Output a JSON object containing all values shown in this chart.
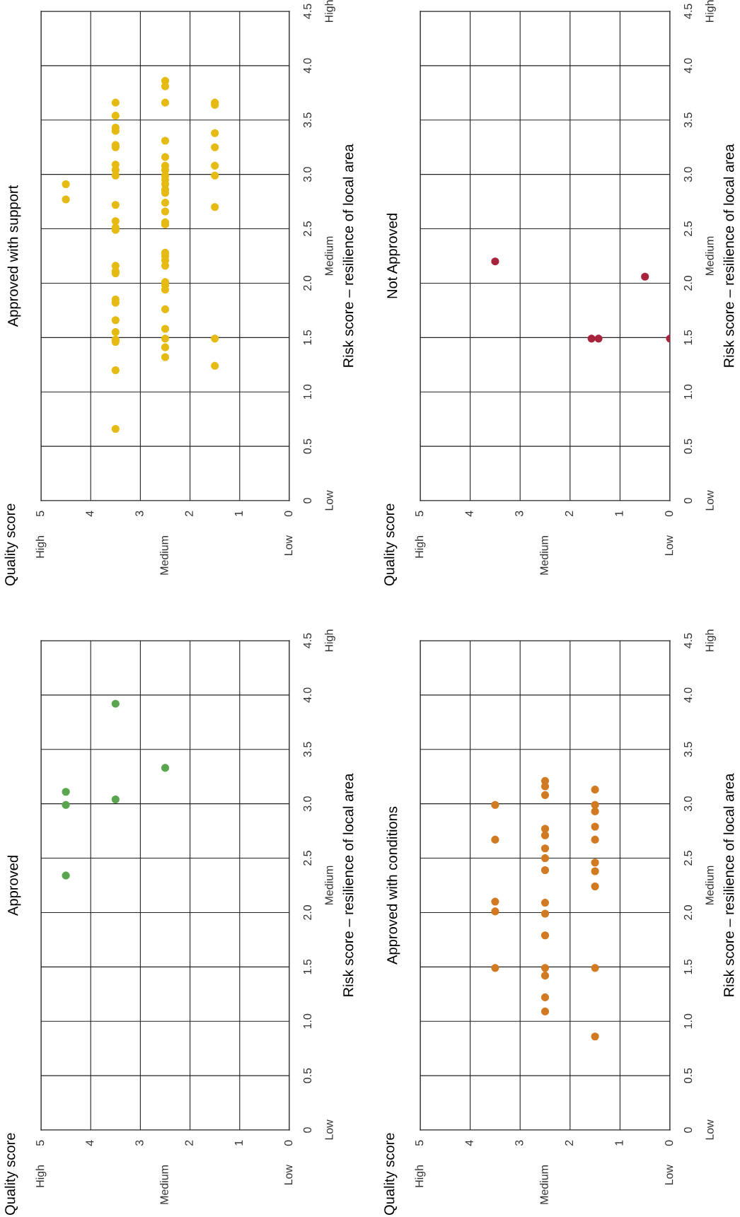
{
  "chart_data": [
    {
      "type": "scatter",
      "title": "Approved",
      "ylabel": "Risk score – resilience of local area",
      "marker": "circle",
      "grid": true,
      "xlim": [
        5,
        0
      ],
      "xticks": [
        5,
        4,
        3,
        2,
        1,
        0
      ],
      "ylim": [
        0,
        4.5
      ],
      "yticks": [
        0,
        0.5,
        {
          "value": 1,
          "label": "1.0"
        },
        1.5,
        {
          "value": 2,
          "label": "2.0"
        },
        2.5,
        {
          "value": 3,
          "label": "3.0"
        },
        3.5,
        {
          "value": 4,
          "label": "4.0"
        },
        4.5
      ],
      "annotations": [
        "High",
        "Medium",
        "Low",
        "Low",
        "Medium",
        "High",
        "Quality score"
      ],
      "series": [
        {
          "color": "#5aa64f",
          "x": [
            4.5,
            4.5,
            4.5,
            3.5,
            3.5,
            2.5
          ],
          "values": [
            2.34,
            2.99,
            3.11,
            3.04,
            3.92,
            3.33
          ]
        }
      ]
    },
    {
      "type": "scatter",
      "title": "Approved with support",
      "ylabel": "Risk score – resilience of local area",
      "marker": "circle",
      "grid": true,
      "xlim": [
        5,
        0
      ],
      "xticks": [
        5,
        4,
        3,
        2,
        1,
        0
      ],
      "ylim": [
        0,
        4.5
      ],
      "yticks": [
        0,
        0.5,
        {
          "value": 1,
          "label": "1.0"
        },
        1.5,
        {
          "value": 2,
          "label": "2.0"
        },
        2.5,
        {
          "value": 3,
          "label": "3.0"
        },
        3.5,
        {
          "value": 4,
          "label": "4.0"
        },
        4.5
      ],
      "annotations": [
        "High",
        "Medium",
        "Low",
        "Low",
        "Medium",
        "High",
        "Quality score"
      ],
      "series": [
        {
          "color": "#e5bb13",
          "x": [
            4.5,
            4.5,
            3.5,
            3.5,
            3.5,
            3.5,
            3.5,
            3.5,
            3.5,
            3.5,
            3.5,
            3.5,
            3.5,
            3.5,
            3.5,
            3.5,
            3.5,
            3.5,
            3.5,
            3.5,
            3.5,
            3.5,
            3.5,
            3.5,
            3.5,
            3.5,
            2.5,
            2.5,
            2.5,
            2.5,
            2.5,
            2.5,
            2.5,
            2.5,
            2.5,
            2.5,
            2.5,
            2.5,
            2.5,
            2.5,
            2.5,
            2.5,
            2.5,
            2.5,
            2.5,
            2.5,
            2.5,
            2.5,
            2.5,
            2.5,
            2.5,
            2.5,
            2.5,
            2.5,
            1.5,
            1.5,
            1.5,
            1.5,
            1.5,
            1.5,
            1.5,
            1.5,
            1.5
          ],
          "values": [
            2.91,
            2.77,
            3.66,
            3.54,
            3.43,
            3.4,
            3.27,
            3.25,
            3.09,
            3.04,
            2.99,
            2.72,
            2.57,
            2.51,
            2.49,
            2.16,
            2.11,
            2.09,
            1.85,
            1.82,
            1.66,
            1.55,
            1.48,
            1.46,
            1.2,
            0.66,
            3.86,
            3.81,
            3.66,
            3.31,
            3.16,
            3.08,
            3.04,
            2.99,
            2.95,
            2.91,
            2.86,
            2.83,
            2.74,
            2.66,
            2.56,
            2.54,
            2.28,
            2.25,
            2.21,
            2.16,
            2.01,
            1.98,
            1.94,
            1.76,
            1.58,
            1.49,
            1.41,
            1.32,
            3.66,
            3.64,
            3.38,
            3.25,
            3.08,
            2.99,
            2.7,
            1.49,
            1.24
          ]
        }
      ]
    },
    {
      "type": "scatter",
      "title": "Approved with conditions",
      "ylabel": "Risk score – resilience of local area",
      "marker": "circle",
      "grid": true,
      "xlim": [
        5,
        0
      ],
      "xticks": [
        5,
        4,
        3,
        2,
        1,
        0
      ],
      "ylim": [
        0,
        4.5
      ],
      "yticks": [
        0,
        0.5,
        {
          "value": 1,
          "label": "1.0"
        },
        1.5,
        {
          "value": 2,
          "label": "2.0"
        },
        2.5,
        {
          "value": 3,
          "label": "3.0"
        },
        3.5,
        {
          "value": 4,
          "label": "4.0"
        },
        4.5
      ],
      "annotations": [
        "High",
        "Medium",
        "Low",
        "Low",
        "Medium",
        "High",
        "Quality score"
      ],
      "series": [
        {
          "color": "#d17a22",
          "x": [
            3.5,
            3.5,
            3.5,
            3.5,
            3.5,
            2.5,
            2.5,
            2.5,
            2.5,
            2.5,
            2.5,
            2.5,
            2.5,
            2.5,
            2.5,
            2.5,
            2.5,
            2.5,
            2.5,
            2.5,
            1.5,
            1.5,
            1.5,
            1.5,
            1.5,
            1.5,
            1.5,
            1.5,
            1.5,
            1.5
          ],
          "values": [
            2.99,
            2.67,
            2.1,
            2.01,
            1.49,
            3.21,
            3.16,
            3.08,
            2.77,
            2.71,
            2.59,
            2.5,
            2.39,
            2.09,
            1.99,
            1.79,
            1.49,
            1.42,
            1.22,
            1.09,
            3.13,
            2.99,
            2.93,
            2.79,
            2.67,
            2.46,
            2.38,
            2.24,
            1.49,
            0.86
          ]
        }
      ]
    },
    {
      "type": "scatter",
      "title": "Not Approved",
      "ylabel": "Risk score – resilience of local area",
      "marker": "circle",
      "grid": true,
      "xlim": [
        5,
        0
      ],
      "xticks": [
        5,
        4,
        3,
        2,
        1,
        0
      ],
      "ylim": [
        0,
        4.5
      ],
      "yticks": [
        0,
        0.5,
        {
          "value": 1,
          "label": "1.0"
        },
        1.5,
        {
          "value": 2,
          "label": "2.0"
        },
        2.5,
        {
          "value": 3,
          "label": "3.0"
        },
        3.5,
        {
          "value": 4,
          "label": "4.0"
        },
        4.5
      ],
      "annotations": [
        "High",
        "Medium",
        "Low",
        "Low",
        "Medium",
        "High",
        "Quality score"
      ],
      "series": [
        {
          "color": "#a8243e",
          "x": [
            3.5,
            1.57,
            1.43,
            0.5,
            0
          ],
          "values": [
            2.2,
            1.49,
            1.49,
            2.06,
            1.49
          ]
        }
      ]
    }
  ]
}
